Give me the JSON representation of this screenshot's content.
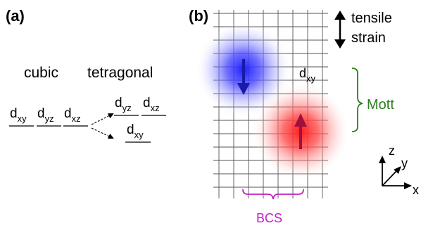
{
  "panel_a": {
    "label": "(a)",
    "heading_cubic": "cubic",
    "heading_tetragonal": "tetragonal",
    "cubic_orbitals": [
      {
        "main": "d",
        "sub": "xy"
      },
      {
        "main": "d",
        "sub": "yz"
      },
      {
        "main": "d",
        "sub": "xz"
      }
    ],
    "tetragonal_upper": [
      {
        "main": "d",
        "sub": "yz"
      },
      {
        "main": "d",
        "sub": "xz"
      }
    ],
    "tetragonal_lower": {
      "main": "d",
      "sub": "xy"
    }
  },
  "panel_b": {
    "label": "(b)",
    "strain_line1": "tensile",
    "strain_line2": "strain",
    "orbital_label": {
      "main": "d",
      "sub": "xy"
    },
    "mott_label": "Mott",
    "bcs_label": "BCS",
    "axes": {
      "z": "z",
      "y": "y",
      "x": "x"
    },
    "colors": {
      "spin_down": "#1a1aa8",
      "spin_down_glow": "#1e1eff",
      "spin_up": "#a0103a",
      "spin_up_glow": "#ff1e1e",
      "mott_bracket": "#2e7d1e",
      "bcs_bracket": "#c020c0"
    }
  }
}
